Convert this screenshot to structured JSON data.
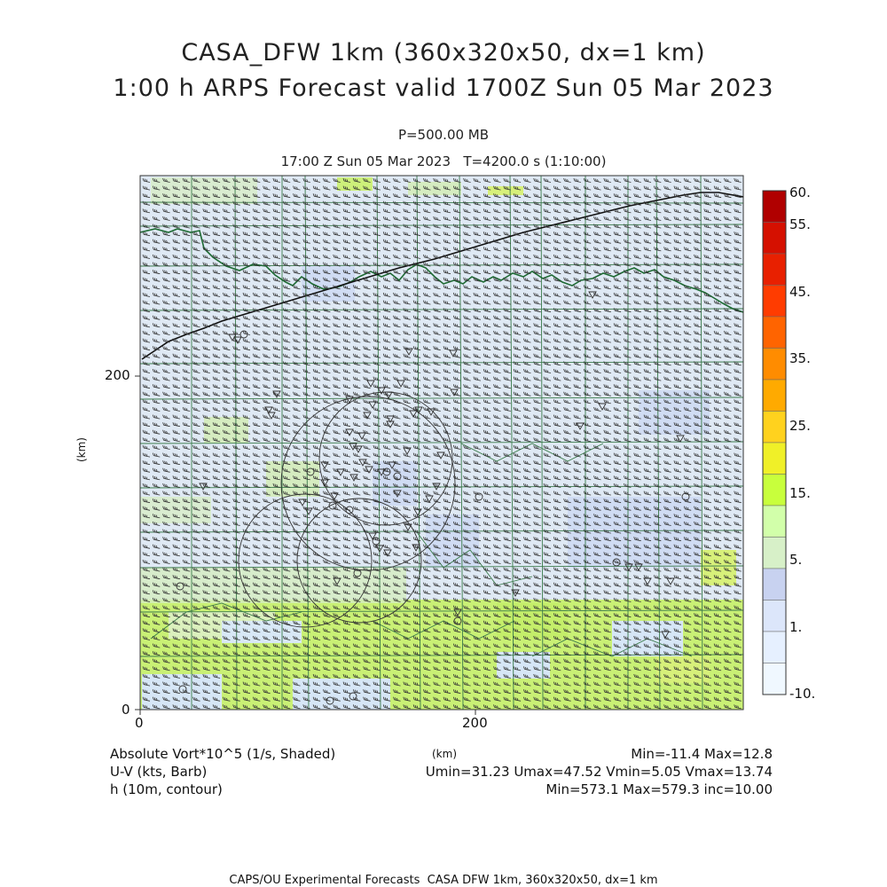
{
  "header": {
    "title_line1": "CASA_DFW 1km (360x320x50, dx=1 km)",
    "title_line2": "1:00 h ARPS Forecast valid 1700Z Sun 05 Mar 2023",
    "pressure": "P=500.00 MB",
    "time_line": "17:00 Z Sun 05 Mar 2023   T=4200.0 s (1:10:00)"
  },
  "axes": {
    "x_ticks": [
      "0",
      "200"
    ],
    "y_ticks": [
      "0",
      "200"
    ],
    "x_label": "(km)",
    "y_label": "(km)",
    "x_range_km": [
      0,
      360
    ],
    "y_range_km": [
      0,
      320
    ]
  },
  "colorbar": {
    "labels": [
      "60.",
      "55.",
      "45.",
      "35.",
      "25.",
      "15.",
      "5.",
      "1.",
      "-10."
    ],
    "colors": [
      "#b00000",
      "#d51000",
      "#e82000",
      "#ff3c00",
      "#ff6400",
      "#ff8c00",
      "#ffaa00",
      "#ffd21e",
      "#f0f028",
      "#c8ff3c",
      "#d2ffaa",
      "#d7f0c8",
      "#c8d2f0",
      "#dce6fa",
      "#e6f0ff",
      "#f0f8ff"
    ]
  },
  "legend": {
    "field1": "Absolute Vort*10^5 (1/s, Shaded)",
    "field1_stats": "Min=-11.4 Max=12.8",
    "field2": "U-V (kts, Barb)",
    "field2_stats": "Umin=31.23 Umax=47.52 Vmin=5.05 Vmax=13.74",
    "field3": "h (10m, contour)",
    "field3_stats": "Min=573.1 Max=579.3 inc=10.00",
    "units": "(km)"
  },
  "footer": "CAPS/OU Experimental Forecasts  CASA DFW 1km, 360x320x50, dx=1 km"
}
